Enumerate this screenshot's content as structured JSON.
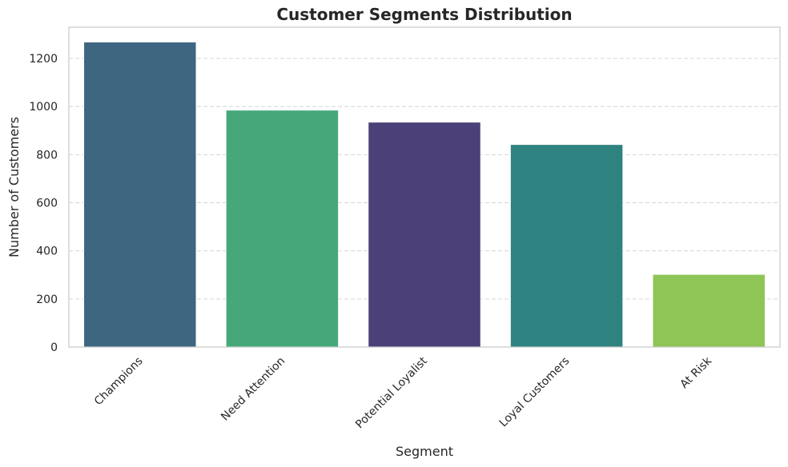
{
  "chart_data": {
    "type": "bar",
    "title": "Customer Segments Distribution",
    "xlabel": "Segment",
    "ylabel": "Number of Customers",
    "categories": [
      "Champions",
      "Need Attention",
      "Potential Loyalist",
      "Loyal Customers",
      "At Risk"
    ],
    "values": [
      1268,
      985,
      935,
      842,
      302
    ],
    "colors": [
      "#3e6680",
      "#46a87a",
      "#4b4178",
      "#2e827f",
      "#8ec556"
    ],
    "ylim": [
      0,
      1330
    ],
    "yticks": [
      0,
      200,
      400,
      600,
      800,
      1000,
      1200
    ],
    "grid": true,
    "grid_axis": "y",
    "grid_style": "dashed",
    "tick_label_rotation_deg": 45,
    "legend": "none"
  }
}
